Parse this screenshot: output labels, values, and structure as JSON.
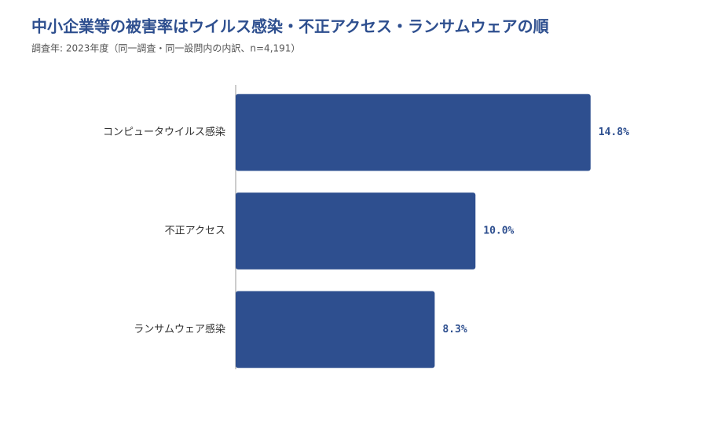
{
  "chart_data": {
    "type": "bar",
    "orientation": "horizontal",
    "title": "中小企業等の被害率はウイルス感染・不正アクセス・ランサムウェアの順",
    "subtitle": "調査年: 2023年度（同一調査・同一設問内の内訳、n=4,191）",
    "categories": [
      "コンピュータウイルス感染",
      "不正アクセス",
      "ランサムウェア感染"
    ],
    "values": [
      14.8,
      10.0,
      8.3
    ],
    "value_labels": [
      "14.8%",
      "10.0%",
      "8.3%"
    ],
    "color": "#2e4f8f",
    "xlim": [
      0,
      19
    ]
  }
}
